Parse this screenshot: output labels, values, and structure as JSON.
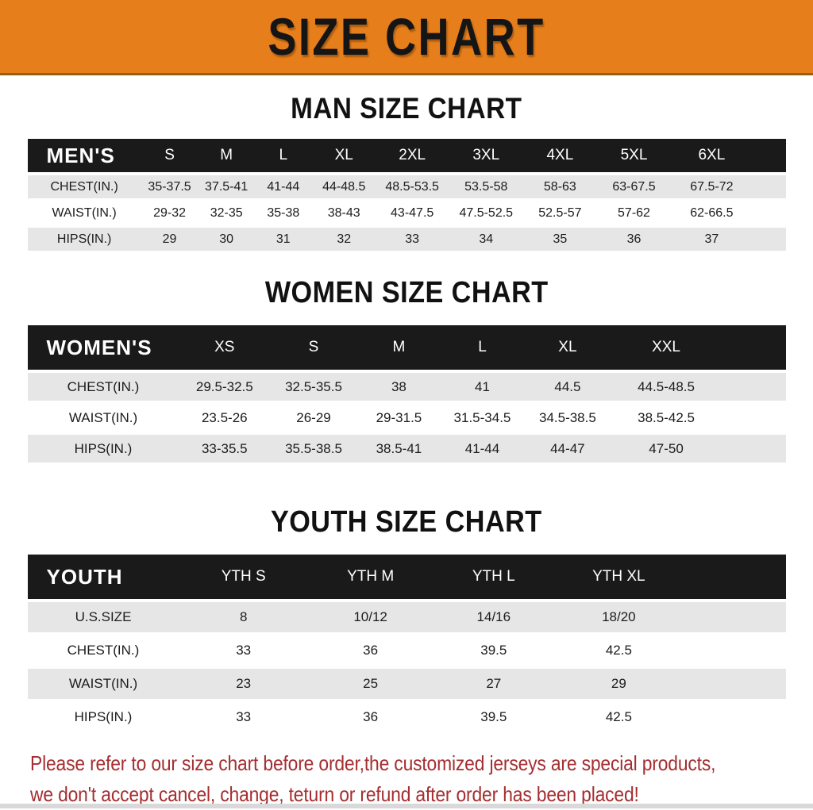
{
  "banner": {
    "title": "SIZE CHART"
  },
  "colors": {
    "banner_orange": "#E67E1B",
    "table_header_black": "#1A1A1A",
    "row_shade_gray": "#E6E6E6",
    "notice_red": "#A42E31"
  },
  "chart_data": [
    {
      "type": "table",
      "title": "MAN SIZE CHART",
      "header_label": "MEN'S",
      "columns": [
        "S",
        "M",
        "L",
        "XL",
        "2XL",
        "3XL",
        "4XL",
        "5XL",
        "6XL"
      ],
      "rows": [
        {
          "label": "CHEST(IN.)",
          "values": [
            "35-37.5",
            "37.5-41",
            "41-44",
            "44-48.5",
            "48.5-53.5",
            "53.5-58",
            "58-63",
            "63-67.5",
            "67.5-72"
          ]
        },
        {
          "label": "WAIST(IN.)",
          "values": [
            "29-32",
            "32-35",
            "35-38",
            "38-43",
            "43-47.5",
            "47.5-52.5",
            "52.5-57",
            "57-62",
            "62-66.5"
          ]
        },
        {
          "label": "HIPS(IN.)",
          "values": [
            "29",
            "30",
            "31",
            "32",
            "33",
            "34",
            "35",
            "36",
            "37"
          ]
        }
      ]
    },
    {
      "type": "table",
      "title": "WOMEN SIZE CHART",
      "header_label": "WOMEN'S",
      "columns": [
        "XS",
        "S",
        "M",
        "L",
        "XL",
        "XXL"
      ],
      "rows": [
        {
          "label": "CHEST(IN.)",
          "values": [
            "29.5-32.5",
            "32.5-35.5",
            "38",
            "41",
            "44.5",
            "44.5-48.5"
          ]
        },
        {
          "label": "WAIST(IN.)",
          "values": [
            "23.5-26",
            "26-29",
            "29-31.5",
            "31.5-34.5",
            "34.5-38.5",
            "38.5-42.5"
          ]
        },
        {
          "label": "HIPS(IN.)",
          "values": [
            "33-35.5",
            "35.5-38.5",
            "38.5-41",
            "41-44",
            "44-47",
            "47-50"
          ]
        }
      ]
    },
    {
      "type": "table",
      "title": "YOUTH SIZE CHART",
      "header_label": "YOUTH",
      "columns": [
        "YTH S",
        "YTH M",
        "YTH L",
        "YTH XL"
      ],
      "rows": [
        {
          "label": "U.S.SIZE",
          "values": [
            "8",
            "10/12",
            "14/16",
            "18/20"
          ]
        },
        {
          "label": "CHEST(IN.)",
          "values": [
            "33",
            "36",
            "39.5",
            "42.5"
          ]
        },
        {
          "label": "WAIST(IN.)",
          "values": [
            "23",
            "25",
            "27",
            "29"
          ]
        },
        {
          "label": "HIPS(IN.)",
          "values": [
            "33",
            "36",
            "39.5",
            "42.5"
          ]
        }
      ]
    }
  ],
  "notice": {
    "line1": "Please refer to our size chart before order,the customized jerseys are special products,",
    "line2": "we don't accept cancel, change, teturn or refund after order has been placed!"
  }
}
